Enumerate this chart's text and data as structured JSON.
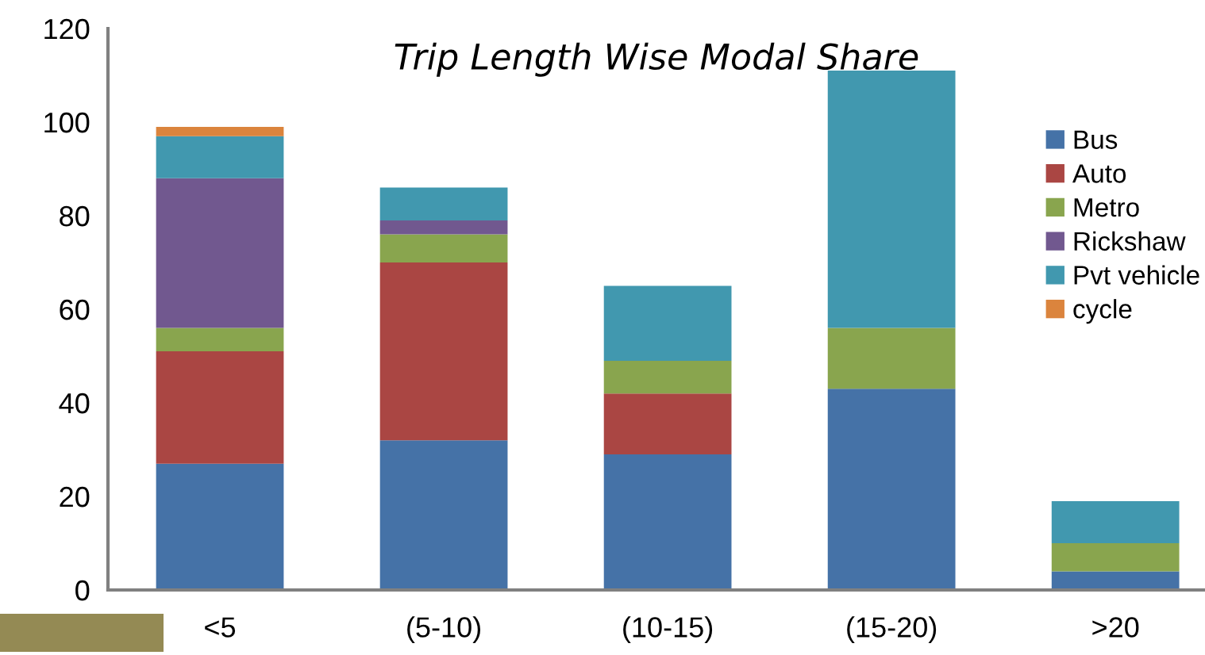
{
  "chart_data": {
    "type": "bar",
    "stacked": true,
    "title": "Trip Length Wise Modal Share",
    "categories": [
      "<5",
      "(5-10)",
      "(10-15)",
      "(15-20)",
      ">20"
    ],
    "series": [
      {
        "name": "Bus",
        "color": "#4572a7",
        "values": [
          27,
          32,
          29,
          43,
          4
        ]
      },
      {
        "name": "Auto",
        "color": "#aa4643",
        "values": [
          24,
          38,
          13,
          0,
          0
        ]
      },
      {
        "name": "Metro",
        "color": "#89a54e",
        "values": [
          5,
          6,
          7,
          13,
          6
        ]
      },
      {
        "name": "Rickshaw",
        "color": "#71588f",
        "values": [
          32,
          3,
          0,
          0,
          0
        ]
      },
      {
        "name": "Pvt vehicle",
        "color": "#4198af",
        "values": [
          9,
          7,
          16,
          55,
          9
        ]
      },
      {
        "name": "cycle",
        "color": "#db843d",
        "values": [
          2,
          0,
          0,
          0,
          0
        ]
      }
    ],
    "ylim": [
      0,
      120
    ],
    "yticks": [
      0,
      20,
      40,
      60,
      80,
      100,
      120
    ],
    "grid": false,
    "legend": "right"
  }
}
